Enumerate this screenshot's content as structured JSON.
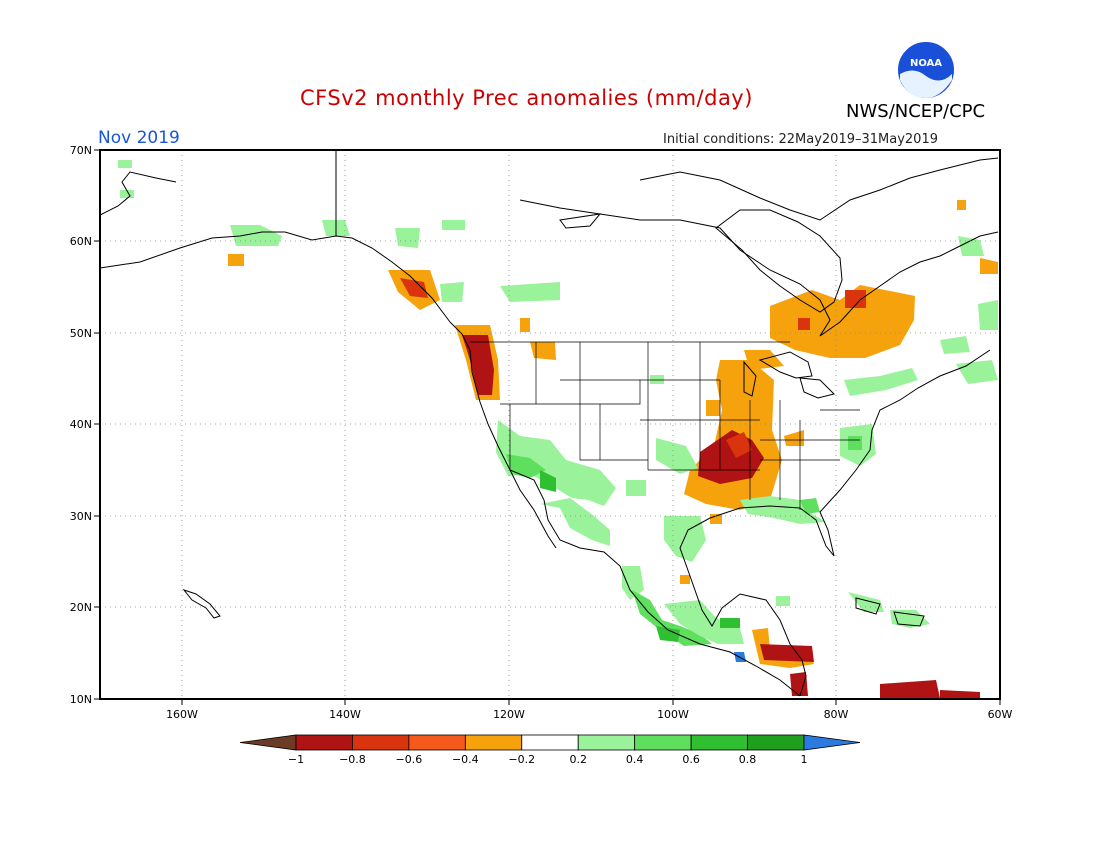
{
  "title": "CFSv2 monthly Prec anomalies (mm/day)",
  "valid_month": "Nov 2019",
  "initial_conditions": "Initial conditions: 22May2019–31May2019",
  "org": "NWS/NCEP/CPC",
  "logo_text": "NOAA",
  "colors": {
    "title": "#cc0000",
    "month": "#1a56d6",
    "dry_strong": "#b01e0a",
    "dry_mid": "#f08c00",
    "wet_light": "#8ee88e",
    "wet_mid": "#55dd55",
    "wet_strong": "#22aa22"
  },
  "map": {
    "lon_range": [
      -170,
      -60
    ],
    "lat_range": [
      10,
      70
    ],
    "lat_labels": [
      "70N",
      "60N",
      "50N",
      "40N",
      "30N",
      "20N",
      "10N"
    ],
    "lon_labels": [
      "160W",
      "140W",
      "120W",
      "100W",
      "80W",
      "60W"
    ]
  },
  "colorbar": {
    "labels": [
      "−1",
      "−0.8",
      "−0.6",
      "−0.4",
      "−0.2",
      "0.2",
      "0.4",
      "0.6",
      "0.8",
      "1"
    ],
    "colors": [
      "#6b3b26",
      "#b01313",
      "#d9340d",
      "#f55a1c",
      "#f5a20d",
      "#ffffff",
      "#9af29a",
      "#5ee05e",
      "#30bf30",
      "#1ea01e",
      "#2a7ae0"
    ]
  }
}
